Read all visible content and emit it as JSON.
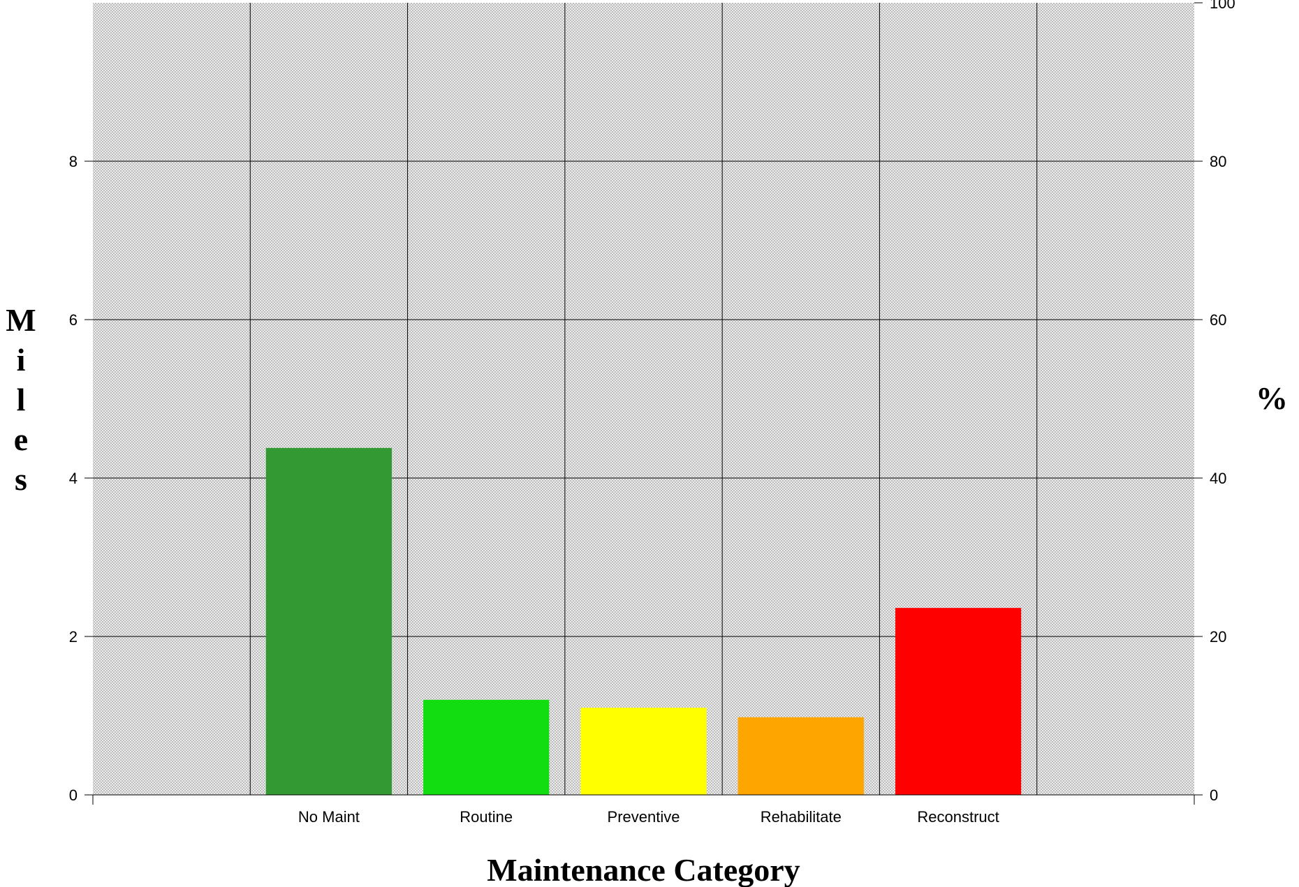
{
  "chart_data": {
    "type": "bar",
    "title": "",
    "xlabel": "Maintenance Category",
    "ylabel": "Miles",
    "y2label": "%",
    "categories": [
      "No Maint",
      "Routine",
      "Preventive",
      "Rehabilitate",
      "Reconstruct"
    ],
    "series": [
      {
        "values": [
          4.38,
          1.2,
          1.1,
          0.98,
          2.36
        ]
      }
    ],
    "bar_colors": [
      "#339933",
      "#11dd11",
      "#ffff00",
      "#ffa500",
      "#ff0000"
    ],
    "ylim": [
      0,
      10
    ],
    "yticks": [
      0,
      2,
      4,
      6,
      8
    ],
    "y2lim": [
      0,
      100
    ],
    "y2ticks": [
      0,
      20,
      40,
      60,
      80,
      100
    ],
    "grid": true,
    "plot_background": "#dcdcdc",
    "legend": "none"
  }
}
